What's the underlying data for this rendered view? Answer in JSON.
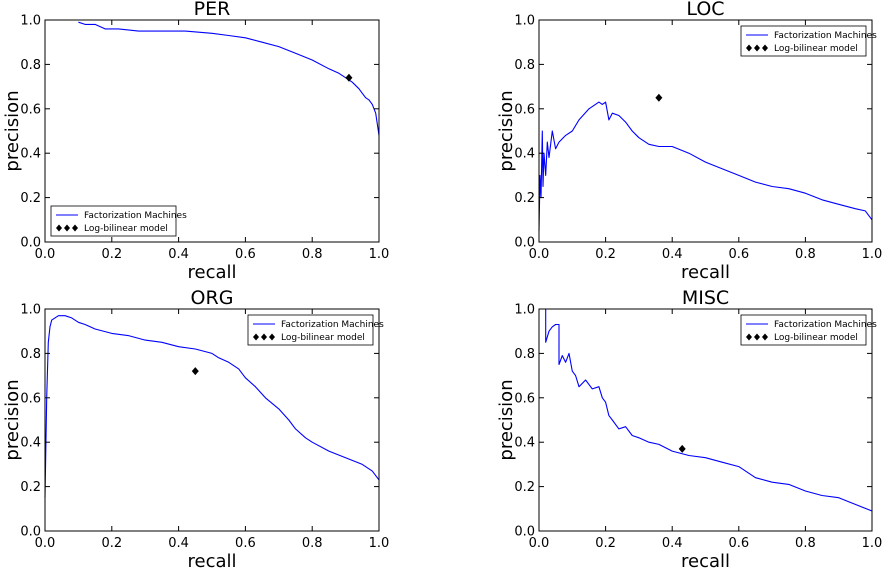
{
  "chart_data": [
    {
      "type": "line",
      "title": "PER",
      "xlabel": "recall",
      "ylabel": "precision",
      "xlim": [
        0,
        1
      ],
      "ylim": [
        0,
        1
      ],
      "xticks": [
        "0.0",
        "0.2",
        "0.4",
        "0.6",
        "0.8",
        "1.0"
      ],
      "yticks": [
        "0.0",
        "0.2",
        "0.4",
        "0.6",
        "0.8",
        "1.0"
      ],
      "legend_position": "lower-left",
      "series": [
        {
          "name": "Factorization Machines",
          "color": "#0000ff",
          "style": "line",
          "x": [
            0.1,
            0.12,
            0.15,
            0.18,
            0.22,
            0.28,
            0.35,
            0.42,
            0.5,
            0.55,
            0.6,
            0.65,
            0.7,
            0.75,
            0.8,
            0.85,
            0.88,
            0.9,
            0.92,
            0.94,
            0.95,
            0.96,
            0.97,
            0.98,
            0.99,
            1.0
          ],
          "y": [
            0.99,
            0.98,
            0.98,
            0.96,
            0.96,
            0.95,
            0.95,
            0.95,
            0.94,
            0.93,
            0.92,
            0.9,
            0.88,
            0.85,
            0.82,
            0.78,
            0.76,
            0.74,
            0.72,
            0.69,
            0.67,
            0.65,
            0.64,
            0.62,
            0.58,
            0.48
          ]
        },
        {
          "name": "Log-bilinear model",
          "color": "#000000",
          "style": "marker",
          "x": [
            0.91
          ],
          "y": [
            0.74
          ]
        }
      ]
    },
    {
      "type": "line",
      "title": "LOC",
      "xlabel": "recall",
      "ylabel": "precision",
      "xlim": [
        0,
        1
      ],
      "ylim": [
        0,
        1
      ],
      "xticks": [
        "0.0",
        "0.2",
        "0.4",
        "0.6",
        "0.8",
        "1.0"
      ],
      "yticks": [
        "0.0",
        "0.2",
        "0.4",
        "0.6",
        "0.8",
        "1.0"
      ],
      "legend_position": "upper-right",
      "series": [
        {
          "name": "Factorization Machines",
          "color": "#0000ff",
          "style": "line",
          "x": [
            0.0,
            0.003,
            0.006,
            0.01,
            0.012,
            0.015,
            0.02,
            0.025,
            0.03,
            0.04,
            0.05,
            0.06,
            0.08,
            0.1,
            0.12,
            0.15,
            0.18,
            0.19,
            0.2,
            0.21,
            0.22,
            0.24,
            0.26,
            0.28,
            0.3,
            0.33,
            0.36,
            0.4,
            0.45,
            0.5,
            0.55,
            0.6,
            0.65,
            0.7,
            0.75,
            0.8,
            0.85,
            0.9,
            0.95,
            0.98,
            1.0
          ],
          "y": [
            0.05,
            0.3,
            0.2,
            0.5,
            0.25,
            0.4,
            0.3,
            0.45,
            0.38,
            0.5,
            0.42,
            0.45,
            0.48,
            0.5,
            0.55,
            0.6,
            0.63,
            0.62,
            0.63,
            0.55,
            0.58,
            0.57,
            0.54,
            0.5,
            0.47,
            0.44,
            0.43,
            0.43,
            0.4,
            0.36,
            0.33,
            0.3,
            0.27,
            0.25,
            0.24,
            0.22,
            0.19,
            0.17,
            0.15,
            0.14,
            0.1
          ]
        },
        {
          "name": "Log-bilinear model",
          "color": "#000000",
          "style": "marker",
          "x": [
            0.36
          ],
          "y": [
            0.65
          ]
        }
      ]
    },
    {
      "type": "line",
      "title": "ORG",
      "xlabel": "recall",
      "ylabel": "precision",
      "xlim": [
        0,
        1
      ],
      "ylim": [
        0,
        1
      ],
      "xticks": [
        "0.0",
        "0.2",
        "0.4",
        "0.6",
        "0.8",
        "1.0"
      ],
      "yticks": [
        "0.0",
        "0.2",
        "0.4",
        "0.6",
        "0.8",
        "1.0"
      ],
      "legend_position": "upper-right",
      "series": [
        {
          "name": "Factorization Machines",
          "color": "#0000ff",
          "style": "line",
          "x": [
            0.0,
            0.005,
            0.01,
            0.015,
            0.02,
            0.03,
            0.04,
            0.06,
            0.08,
            0.1,
            0.12,
            0.15,
            0.2,
            0.25,
            0.3,
            0.35,
            0.4,
            0.45,
            0.5,
            0.52,
            0.55,
            0.58,
            0.6,
            0.63,
            0.66,
            0.7,
            0.73,
            0.75,
            0.78,
            0.8,
            0.85,
            0.9,
            0.95,
            0.98,
            1.0
          ],
          "y": [
            0.15,
            0.6,
            0.85,
            0.92,
            0.95,
            0.96,
            0.97,
            0.97,
            0.96,
            0.94,
            0.93,
            0.91,
            0.89,
            0.88,
            0.86,
            0.85,
            0.83,
            0.82,
            0.8,
            0.78,
            0.76,
            0.73,
            0.69,
            0.65,
            0.6,
            0.55,
            0.5,
            0.46,
            0.42,
            0.4,
            0.36,
            0.33,
            0.3,
            0.27,
            0.23
          ]
        },
        {
          "name": "Log-bilinear model",
          "color": "#000000",
          "style": "marker",
          "x": [
            0.45
          ],
          "y": [
            0.72
          ]
        }
      ]
    },
    {
      "type": "line",
      "title": "MISC",
      "xlabel": "recall",
      "ylabel": "precision",
      "xlim": [
        0,
        1
      ],
      "ylim": [
        0,
        1
      ],
      "xticks": [
        "0.0",
        "0.2",
        "0.4",
        "0.6",
        "0.8",
        "1.0"
      ],
      "yticks": [
        "0.0",
        "0.2",
        "0.4",
        "0.6",
        "0.8",
        "1.0"
      ],
      "legend_position": "upper-right",
      "series": [
        {
          "name": "Factorization Machines",
          "color": "#0000ff",
          "style": "line",
          "x": [
            0.02,
            0.02,
            0.03,
            0.04,
            0.05,
            0.06,
            0.06,
            0.07,
            0.08,
            0.09,
            0.1,
            0.11,
            0.12,
            0.14,
            0.16,
            0.18,
            0.19,
            0.2,
            0.21,
            0.22,
            0.24,
            0.26,
            0.28,
            0.3,
            0.33,
            0.36,
            0.4,
            0.45,
            0.5,
            0.55,
            0.6,
            0.65,
            0.7,
            0.75,
            0.8,
            0.85,
            0.9,
            0.95,
            1.0
          ],
          "y": [
            1.0,
            0.85,
            0.9,
            0.92,
            0.93,
            0.93,
            0.75,
            0.79,
            0.76,
            0.8,
            0.72,
            0.7,
            0.65,
            0.68,
            0.64,
            0.65,
            0.6,
            0.58,
            0.52,
            0.5,
            0.46,
            0.47,
            0.43,
            0.42,
            0.4,
            0.39,
            0.36,
            0.34,
            0.33,
            0.31,
            0.29,
            0.24,
            0.22,
            0.21,
            0.18,
            0.16,
            0.15,
            0.12,
            0.09
          ]
        },
        {
          "name": "Log-bilinear model",
          "color": "#000000",
          "style": "marker",
          "x": [
            0.43
          ],
          "y": [
            0.37
          ]
        }
      ]
    }
  ]
}
